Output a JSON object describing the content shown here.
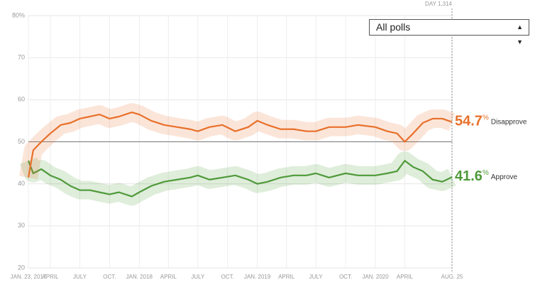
{
  "chart_data": {
    "type": "line",
    "x": [
      0,
      15,
      40,
      68,
      100,
      130,
      159,
      190,
      220,
      251,
      280,
      320,
      343,
      380,
      420,
      460,
      500,
      524,
      560,
      600,
      640,
      680,
      708,
      740,
      780,
      820,
      860,
      889,
      930,
      981,
      1020,
      1073,
      1110,
      1140,
      1164,
      1190,
      1220,
      1250,
      1280,
      1310
    ],
    "series": [
      {
        "name": "Approve",
        "color": "#4e9a3a",
        "values": [
          45.5,
          42.5,
          43.5,
          42,
          41,
          39.5,
          38.5,
          38.5,
          38,
          37.5,
          38,
          37,
          38,
          39.5,
          40.5,
          41,
          41.5,
          42,
          41,
          41.5,
          42,
          41,
          40,
          40.5,
          41.5,
          42,
          42,
          42.5,
          41.5,
          42.5,
          42,
          42,
          42.5,
          43,
          45.5,
          44,
          43,
          41,
          40.5,
          41.6
        ]
      },
      {
        "name": "Disapprove",
        "color": "#e8702a",
        "values": [
          41.5,
          48,
          50,
          52,
          54,
          54.5,
          55.5,
          56,
          56.5,
          55.5,
          56,
          57,
          56.5,
          55,
          54,
          53.5,
          53,
          52.5,
          53.5,
          54,
          52.5,
          53.5,
          55,
          54,
          53,
          53,
          52.5,
          52.5,
          53.5,
          53.5,
          54,
          53.5,
          52.5,
          52,
          50,
          52,
          54.5,
          55.5,
          55.5,
          54.7
        ]
      }
    ],
    "unit": "%",
    "xlim": [
      0,
      1310
    ],
    "xticks": [
      {
        "value": 0,
        "label": "JAN. 23, 2017"
      },
      {
        "value": 68,
        "label": "APRIL"
      },
      {
        "value": 159,
        "label": "JULY"
      },
      {
        "value": 251,
        "label": "OCT."
      },
      {
        "value": 343,
        "label": "JAN. 2018"
      },
      {
        "value": 433,
        "label": "APRIL"
      },
      {
        "value": 524,
        "label": "JULY"
      },
      {
        "value": 616,
        "label": "OCT."
      },
      {
        "value": 708,
        "label": "JAN. 2019"
      },
      {
        "value": 798,
        "label": "APRIL"
      },
      {
        "value": 889,
        "label": "JULY"
      },
      {
        "value": 981,
        "label": "OCT."
      },
      {
        "value": 1073,
        "label": "JAN. 2020"
      },
      {
        "value": 1164,
        "label": "APRIL"
      },
      {
        "value": 1310,
        "label": "AUG. 25"
      }
    ],
    "ylim": [
      20,
      80
    ],
    "yticks": [
      20,
      30,
      40,
      50,
      60,
      70,
      {
        "value": 80,
        "label": "80%"
      }
    ],
    "reference_line": 50,
    "cursor": {
      "value": 1310,
      "label": "DAY 1,314"
    },
    "dropdown": "All polls",
    "grid": true
  }
}
